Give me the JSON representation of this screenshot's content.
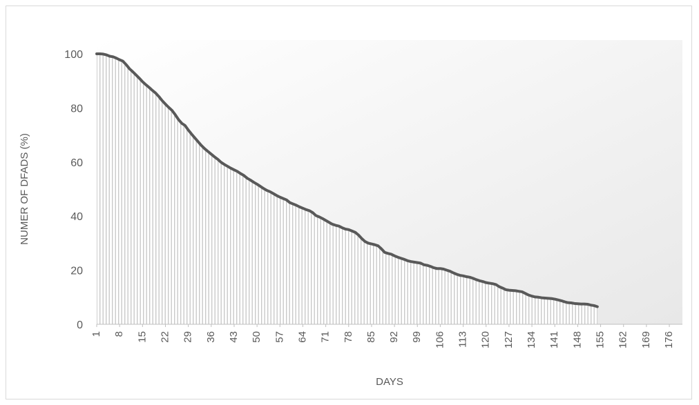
{
  "chart_data": {
    "type": "area",
    "title": "",
    "xlabel": "DAYS",
    "ylabel": "NUMER OF DFADS (%)",
    "x_range": [
      1,
      180
    ],
    "ylim": [
      0,
      100
    ],
    "y_ticks": [
      0,
      20,
      40,
      60,
      80,
      100
    ],
    "x_tick_labels": [
      "1",
      "8",
      "15",
      "22",
      "29",
      "36",
      "43",
      "50",
      "57",
      "64",
      "71",
      "78",
      "85",
      "92",
      "99",
      "106",
      "113",
      "120",
      "127",
      "134",
      "141",
      "148",
      "155",
      "162",
      "169",
      "176"
    ],
    "grid": false,
    "legend": "none",
    "series": [
      {
        "x_start": 1,
        "x_step": 1,
        "values": [
          100.0,
          100.0,
          99.9,
          99.6,
          99.1,
          98.9,
          98.4,
          97.8,
          97.3,
          96.0,
          94.5,
          93.4,
          92.2,
          91.0,
          89.7,
          88.6,
          87.6,
          86.5,
          85.5,
          84.2,
          82.7,
          81.4,
          80.2,
          79.1,
          77.5,
          75.7,
          74.3,
          73.5,
          71.8,
          70.3,
          68.9,
          67.5,
          66.1,
          64.9,
          63.9,
          62.9,
          61.9,
          61.0,
          59.9,
          59.1,
          58.4,
          57.7,
          57.1,
          56.5,
          55.7,
          55.0,
          54.0,
          53.3,
          52.5,
          51.8,
          51.0,
          50.2,
          49.5,
          49.0,
          48.3,
          47.6,
          47.0,
          46.5,
          46.0,
          45.0,
          44.5,
          44.0,
          43.4,
          42.9,
          42.4,
          42.0,
          41.3,
          40.2,
          39.7,
          39.1,
          38.4,
          37.7,
          37.0,
          36.6,
          36.3,
          35.7,
          35.2,
          35.0,
          34.5,
          34.0,
          33.0,
          31.7,
          30.6,
          30.0,
          29.7,
          29.4,
          29.0,
          27.9,
          26.6,
          26.2,
          25.9,
          25.3,
          24.8,
          24.4,
          24.0,
          23.5,
          23.2,
          23.0,
          22.8,
          22.6,
          22.0,
          21.8,
          21.4,
          20.9,
          20.6,
          20.6,
          20.4,
          20.0,
          19.6,
          19.0,
          18.5,
          18.1,
          17.9,
          17.6,
          17.4,
          17.0,
          16.5,
          16.1,
          15.8,
          15.4,
          15.2,
          15.0,
          14.7,
          13.9,
          13.4,
          12.8,
          12.6,
          12.5,
          12.4,
          12.2,
          12.0,
          11.4,
          10.8,
          10.4,
          10.1,
          10.0,
          9.8,
          9.7,
          9.6,
          9.5,
          9.3,
          9.0,
          8.7,
          8.3,
          8.0,
          7.9,
          7.7,
          7.6,
          7.5,
          7.5,
          7.4,
          7.1,
          6.9,
          6.5
        ],
        "line_color": "#595959",
        "fill_color": "#d9d9d9"
      }
    ]
  }
}
